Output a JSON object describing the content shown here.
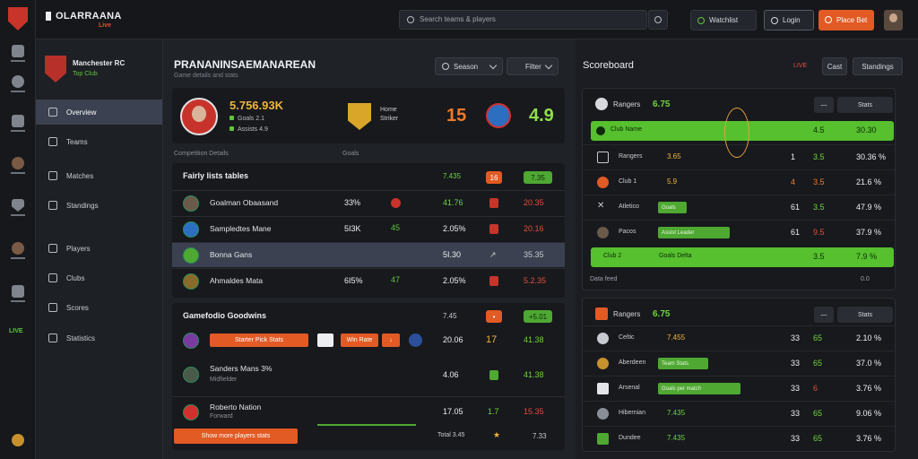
{
  "topbar": {
    "brand": "OLARRAANA",
    "brand_sub": "Live",
    "search_placeholder": "Search teams & players",
    "watch_label": "Watchlist",
    "login_label": "Login",
    "bet_label": "Place Bet"
  },
  "rail": {
    "items": [
      "football-icon",
      "stats-icon",
      "player-icon",
      "shield-icon",
      "person-icon",
      "chart-icon",
      "live-icon"
    ],
    "live_label": "LIVE"
  },
  "sidebar": {
    "club_name": "Manchester RC",
    "club_sub": "Top Club",
    "items": [
      {
        "label": "Overview",
        "active": true
      },
      {
        "label": "Teams",
        "active": false
      },
      {
        "label": "Matches",
        "active": false
      },
      {
        "label": "Standings",
        "active": false
      },
      {
        "label": "Players",
        "active": false
      },
      {
        "label": "Clubs",
        "active": false
      },
      {
        "label": "Scores",
        "active": false
      },
      {
        "label": "Statistics",
        "active": false
      }
    ]
  },
  "main": {
    "title": "PRANANINSAEMANAREAN",
    "subtitle": "Game details and stats",
    "select_a": "Season",
    "select_b": "Filter",
    "hero": {
      "value": "5.756.93K",
      "line1": "Goals 2.1",
      "line2": "Assists 4.9",
      "team_a_name": "Home\nStriker",
      "score_a": "15",
      "score_b": "4.9"
    },
    "col_headers": [
      "Competition Details",
      "Goals"
    ],
    "panel1": {
      "title": "Fairly lists tables",
      "head_values": [
        "7.435",
        "16",
        "7.35"
      ],
      "rows": [
        {
          "name": "Goalman Obaasand",
          "c1": "33%",
          "c3": "41.76",
          "c5": "20.35",
          "grn": true,
          "hl": false
        },
        {
          "name": "Sampledtes Mane",
          "c1": "5I3K",
          "c3": "2.05%",
          "c5": "20.16",
          "grn": false,
          "hl": false
        },
        {
          "name": "Bonna Gans",
          "c1": "",
          "c3": "5I.30",
          "c5": "35.35",
          "grn": false,
          "hl": true
        },
        {
          "name": "Ahmaldes Mata",
          "c1": "6I5%",
          "c3": "2.05%",
          "c5": "5.2.35",
          "grn": false,
          "hl": false
        }
      ],
      "g_vals": [
        "45",
        "47"
      ]
    },
    "panel2": {
      "title": "Gamefodio Goodwins",
      "head_values": [
        "7.45",
        "+5.01"
      ],
      "rows": [
        {
          "name": "",
          "tag1": "Starter Pick Stats",
          "tag2": "Win Rate",
          "c3": "20.06",
          "n": "17",
          "c5": "41.38"
        },
        {
          "name": "Sanders Mans 3%",
          "sub": "Midfielder",
          "c3": "4.06",
          "n": "",
          "c5": "41.38"
        },
        {
          "name": "Roberto Nation",
          "sub": "Forward",
          "c3": "17.05",
          "n": "1.7",
          "c5": "15.35"
        }
      ],
      "footer_tag": "Show more players stats",
      "footer_vals": [
        "Total 3.45",
        "7.33"
      ]
    }
  },
  "right": {
    "title": "Scoreboard",
    "meta": "LIVE",
    "btn_a": "Cast",
    "btn_b": "Standings",
    "panel1": {
      "head_name": "Rangers",
      "head_val": "6.75",
      "ctl_a": "—",
      "ctl_b": "Stats",
      "rows": [
        {
          "lbl": "Club Name",
          "v1": "",
          "n1": "",
          "n2": "4.5",
          "n3": "30.30",
          "bar": true
        },
        {
          "lbl": "Rangers",
          "v1": "3.65",
          "n1": "1",
          "n2": "3.5",
          "n3": "30.36 %",
          "bar": false
        },
        {
          "lbl": "Club 1",
          "v1": "5.9",
          "n1": "4",
          "n2": "3.5",
          "n3": "21.6 %",
          "bar": false
        },
        {
          "lbl": "Atletico",
          "v1": "Goals",
          "n1": "61",
          "n2": "3.5",
          "n3": "47.9 %",
          "bar": false
        },
        {
          "lbl": "Pacos",
          "v1": "Assist Leader",
          "n1": "61",
          "n2": "9.5",
          "n3": "37.9 %",
          "bar": false
        },
        {
          "lbl": "Club 2",
          "v1": "Goals Delta",
          "n1": "",
          "n2": "3.5",
          "n3": "7.9 %",
          "bar": true
        }
      ],
      "foot_left": "Data feed",
      "foot_right": "0.0"
    },
    "panel2": {
      "head_name": "Rangers",
      "head_val": "6.75",
      "ctl_a": "—",
      "ctl_b": "Stats",
      "rows": [
        {
          "lbl": "Celtic",
          "v1": "7.455",
          "n1": "33",
          "n2": "65",
          "n3": "2.10 %"
        },
        {
          "lbl": "Aberdeen",
          "v1": "Team Stats",
          "n1": "33",
          "n2": "65",
          "n3": "37.0 %"
        },
        {
          "lbl": "Arsenal",
          "v1": "Goals per match",
          "n1": "33",
          "n2": "6",
          "n3": "3.76 %"
        },
        {
          "lbl": "Hibernian",
          "v1": "7.435",
          "n1": "33",
          "n2": "65",
          "n3": "9.06 %"
        },
        {
          "lbl": "Dundee",
          "v1": "7.435",
          "n1": "33",
          "n2": "65",
          "n3": "3.76 %"
        }
      ]
    }
  },
  "colors": {
    "accent_orange": "#e25a24",
    "accent_green": "#56c02e",
    "panel": "#17191d",
    "background": "#1b1d22"
  }
}
